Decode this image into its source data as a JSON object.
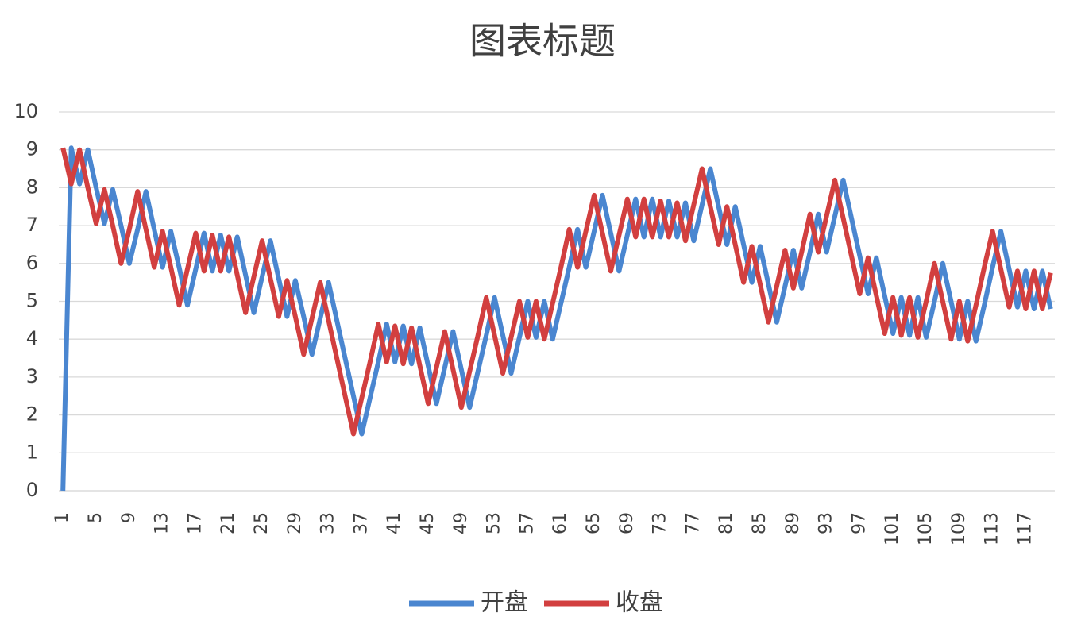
{
  "chart_data": {
    "type": "line",
    "title": "图表标题",
    "categories": [
      "1",
      null,
      null,
      null,
      "5",
      null,
      null,
      null,
      "9",
      null,
      null,
      null,
      "13",
      null,
      null,
      null,
      "17",
      null,
      null,
      null,
      "21",
      null,
      null,
      null,
      "25",
      null,
      null,
      null,
      "29",
      null,
      null,
      null,
      "33",
      null,
      null,
      null,
      "37",
      null,
      null,
      null,
      "41",
      null,
      null,
      null,
      "45",
      null,
      null,
      null,
      "49",
      null,
      null,
      null,
      "53",
      null,
      null,
      null,
      "57",
      null,
      null,
      null,
      "61",
      null,
      null,
      null,
      "65",
      null,
      null,
      null,
      "69",
      null,
      null,
      null,
      "73",
      null,
      null,
      null,
      "77",
      null,
      null,
      null,
      "81",
      null,
      null,
      null,
      "85",
      null,
      null,
      null,
      "89",
      null,
      null,
      null,
      "93",
      null,
      null,
      null,
      "97",
      null,
      null,
      null,
      "101",
      null,
      null,
      null,
      "105",
      null,
      null,
      null,
      "109",
      null,
      null,
      null,
      "113",
      null,
      null,
      null,
      "117",
      null,
      null,
      null
    ],
    "series": [
      {
        "name": "开盘",
        "color": "#4a86d0",
        "values": [
          0,
          9.05,
          8.1,
          9.0,
          8.0,
          7.05,
          7.95,
          7.0,
          6.0,
          6.9,
          7.9,
          6.9,
          5.9,
          6.85,
          5.9,
          4.9,
          5.85,
          6.8,
          5.8,
          6.75,
          5.8,
          6.7,
          5.7,
          4.7,
          5.65,
          6.6,
          5.6,
          4.6,
          5.55,
          4.6,
          3.6,
          4.55,
          5.5,
          4.5,
          3.5,
          2.5,
          1.5,
          2.45,
          3.4,
          4.4,
          3.4,
          4.35,
          3.35,
          4.3,
          3.3,
          2.3,
          3.25,
          4.2,
          3.2,
          2.2,
          3.15,
          4.1,
          5.1,
          4.1,
          3.1,
          4.05,
          5.0,
          4.05,
          5.0,
          4.0,
          4.95,
          5.9,
          6.9,
          5.9,
          6.85,
          7.8,
          6.8,
          5.8,
          6.75,
          7.7,
          6.7,
          7.7,
          6.7,
          7.65,
          6.7,
          7.6,
          6.6,
          7.55,
          8.5,
          7.5,
          6.5,
          7.5,
          6.5,
          5.5,
          6.45,
          5.45,
          4.45,
          5.4,
          6.35,
          5.35,
          6.3,
          7.3,
          6.3,
          7.25,
          8.2,
          7.2,
          6.2,
          5.2,
          6.15,
          5.15,
          4.15,
          5.1,
          4.1,
          5.1,
          4.05,
          5.0,
          6.0,
          5.0,
          4.0,
          5.0,
          3.95,
          4.9,
          5.9,
          6.85,
          5.85,
          4.85,
          5.8,
          4.8,
          5.8,
          4.8
        ]
      },
      {
        "name": "收盘",
        "color": "#d23f3f",
        "values": [
          9.05,
          8.1,
          9.0,
          8.0,
          7.05,
          7.95,
          7.0,
          6.0,
          6.9,
          7.9,
          6.9,
          5.9,
          6.85,
          5.9,
          4.9,
          5.85,
          6.8,
          5.8,
          6.75,
          5.8,
          6.7,
          5.7,
          4.7,
          5.65,
          6.6,
          5.6,
          4.6,
          5.55,
          4.6,
          3.6,
          4.55,
          5.5,
          4.5,
          3.5,
          2.5,
          1.5,
          2.45,
          3.4,
          4.4,
          3.4,
          4.35,
          3.35,
          4.3,
          3.3,
          2.3,
          3.25,
          4.2,
          3.2,
          2.2,
          3.15,
          4.1,
          5.1,
          4.1,
          3.1,
          4.05,
          5.0,
          4.05,
          5.0,
          4.0,
          4.95,
          5.9,
          6.9,
          5.9,
          6.85,
          7.8,
          6.8,
          5.8,
          6.75,
          7.7,
          6.7,
          7.7,
          6.7,
          7.65,
          6.7,
          7.6,
          6.6,
          7.55,
          8.5,
          7.5,
          6.5,
          7.5,
          6.5,
          5.5,
          6.45,
          5.45,
          4.45,
          5.4,
          6.35,
          5.35,
          6.3,
          7.3,
          6.3,
          7.25,
          8.2,
          7.2,
          6.2,
          5.2,
          6.15,
          5.15,
          4.15,
          5.1,
          4.1,
          5.1,
          4.05,
          5.0,
          6.0,
          5.0,
          4.0,
          5.0,
          3.95,
          4.9,
          5.9,
          6.85,
          5.85,
          4.85,
          5.8,
          4.8,
          5.8,
          4.8,
          5.75
        ]
      }
    ],
    "ylim": [
      0,
      10
    ],
    "yticks": [
      0,
      1,
      2,
      3,
      4,
      5,
      6,
      7,
      8,
      9,
      10
    ],
    "grid": true,
    "legend": "bottom"
  }
}
